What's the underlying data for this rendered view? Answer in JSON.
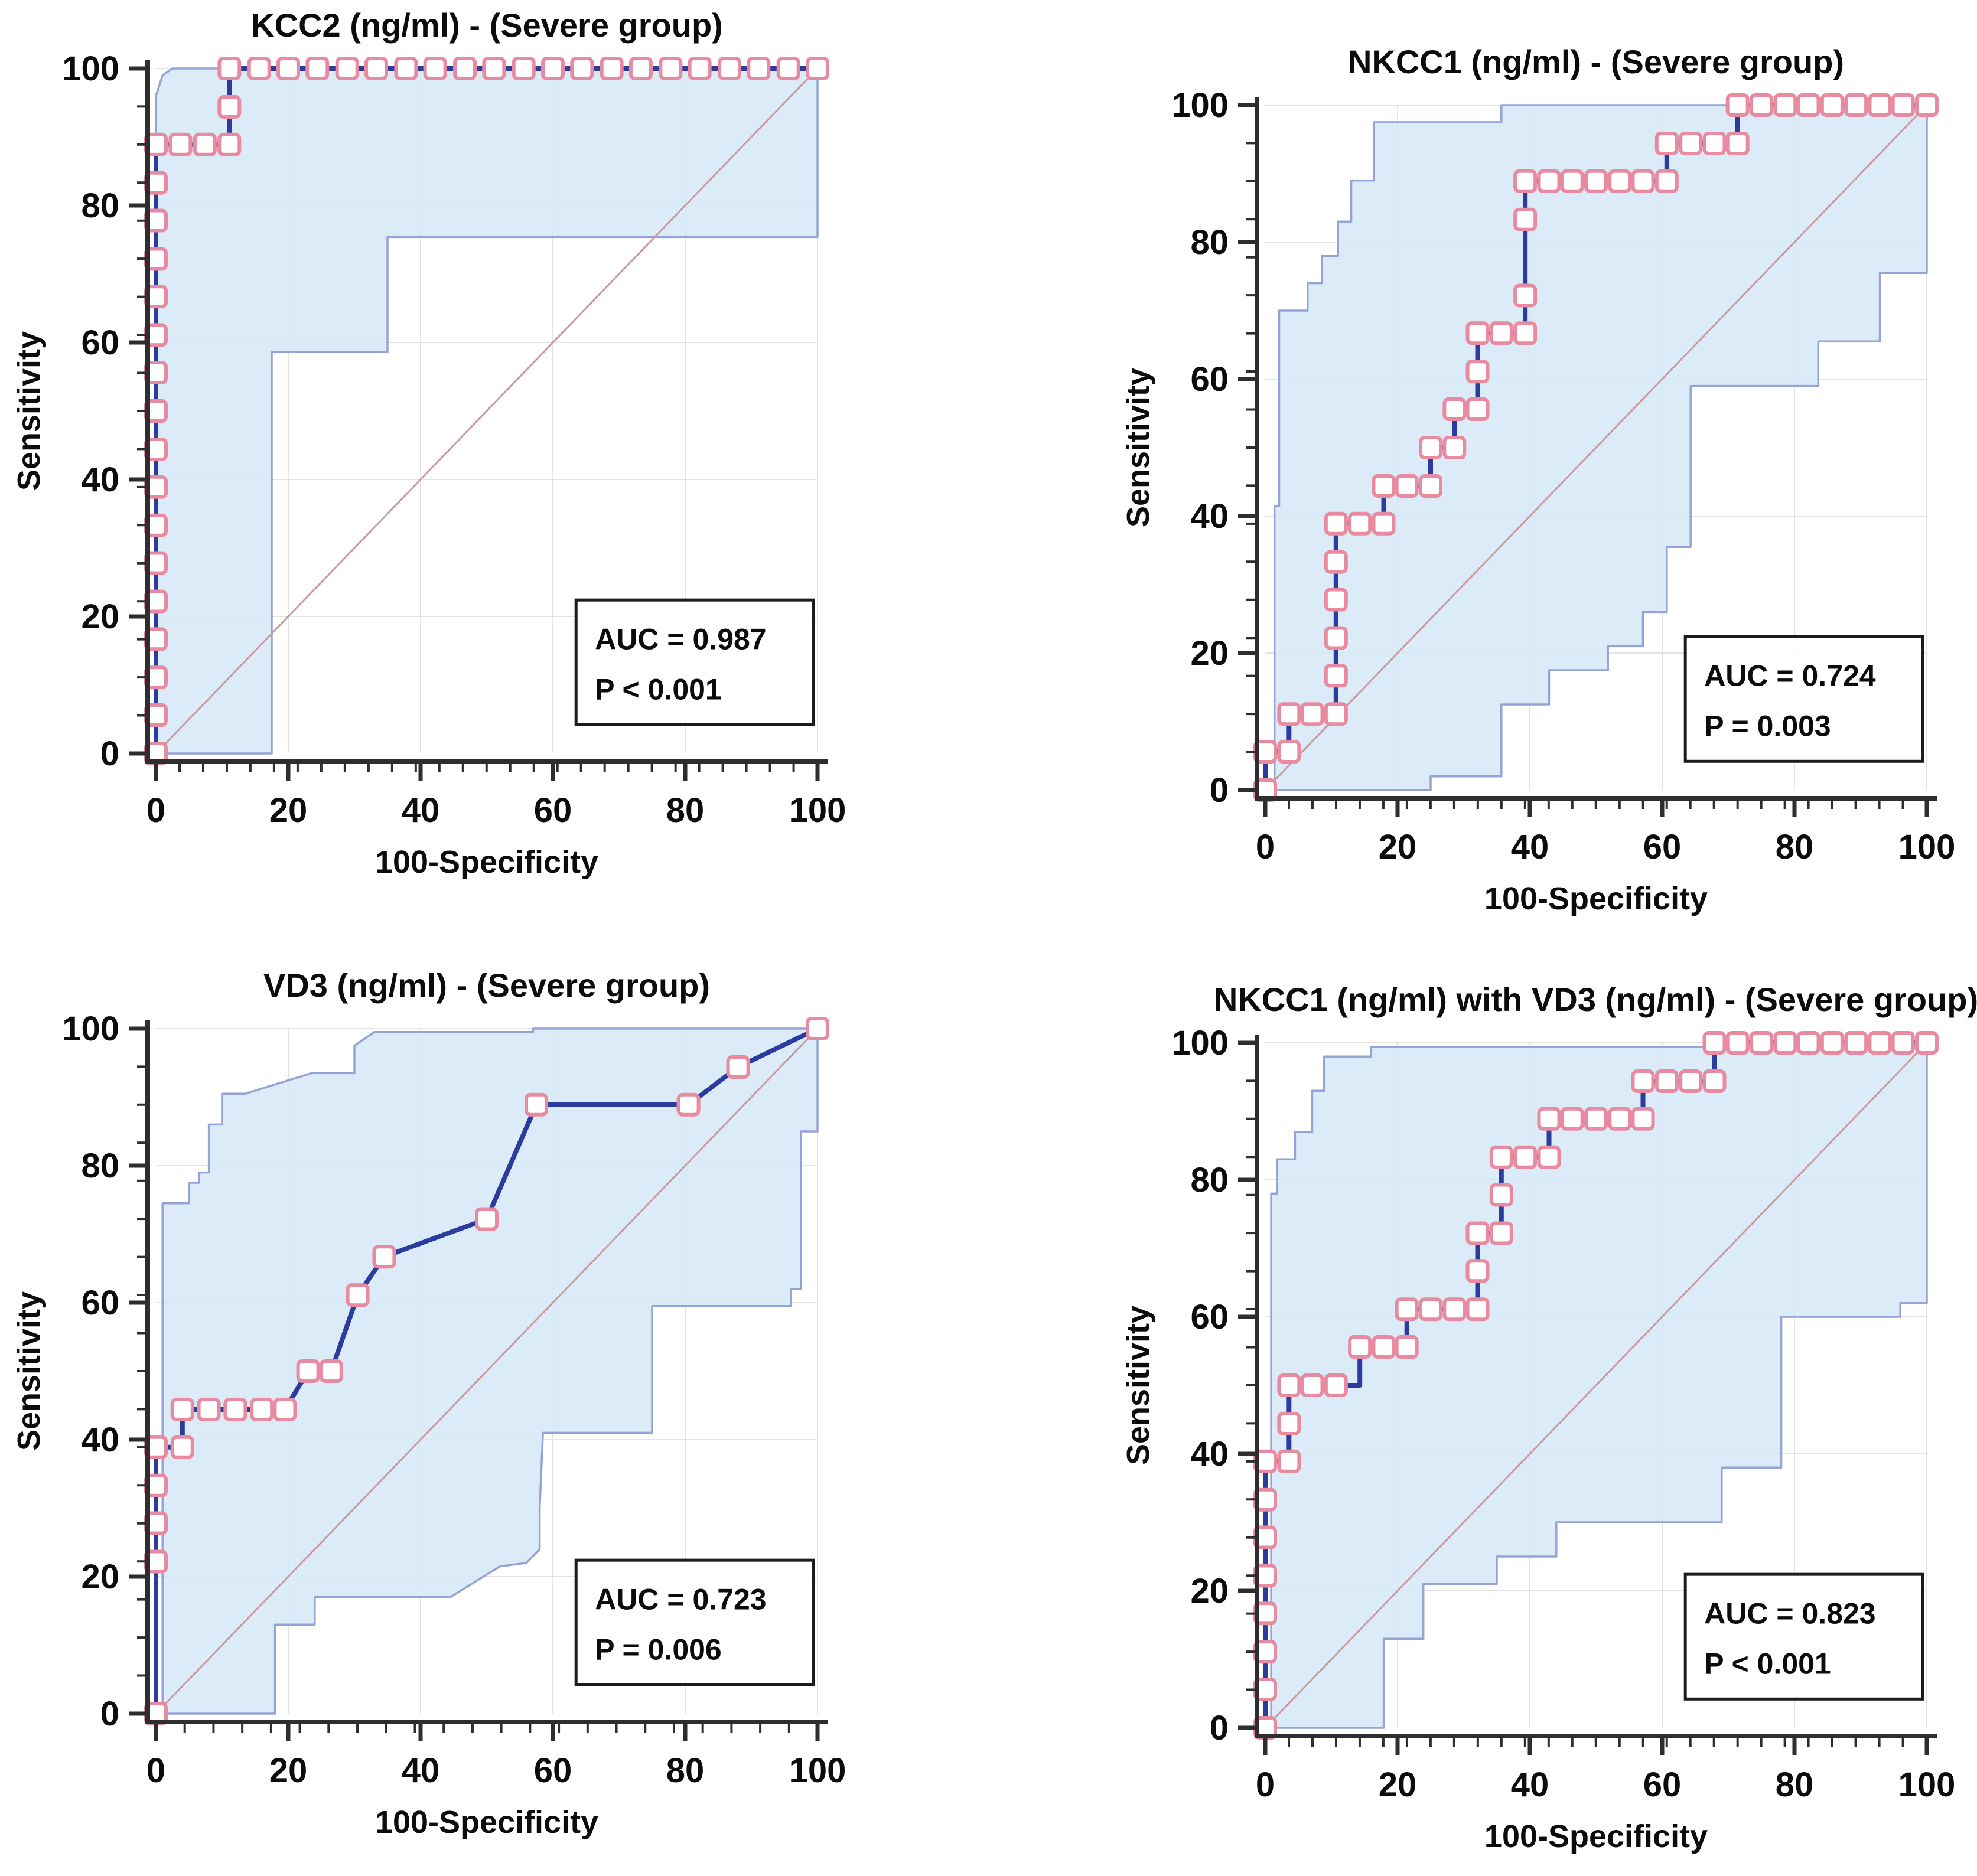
{
  "figure": {
    "background": "#ffffff",
    "xlabel": "100-Specificity",
    "ylabel": "Sensitivity"
  },
  "style": {
    "roc_line": "#2c3b9e",
    "marker_stroke": "#e88ba0",
    "marker_fill": "#ffffff",
    "ci_fill": "#d6e8f7",
    "ci_line": "#96a3d6",
    "diagonal": "#c99aa0",
    "grid": "#e3e3e3",
    "axis": "#2e2e2e",
    "text": "#0c0c0c",
    "box_border": "#1c1c1c",
    "box_fill": "#ffffff"
  },
  "chart_data": [
    {
      "type": "line",
      "id": "kcc2",
      "title": "KCC2 (ng/ml) - (Severe group)",
      "xlabel": "100-Specificity",
      "ylabel": "Sensitivity",
      "auc_label": "AUC = 0.987",
      "p_label": "P < 0.001",
      "xlim": [
        0,
        100
      ],
      "ylim": [
        0,
        100
      ],
      "x_ticks": [
        0,
        20,
        40,
        60,
        80,
        100
      ],
      "y_ticks": [
        0,
        20,
        40,
        60,
        80,
        100
      ],
      "x_minor_step": 3.57,
      "y_minor_step": 5.556,
      "roc": [
        [
          0,
          0
        ],
        [
          0,
          5.6
        ],
        [
          0,
          11.1
        ],
        [
          0,
          16.7
        ],
        [
          0,
          22.2
        ],
        [
          0,
          27.8
        ],
        [
          0,
          33.3
        ],
        [
          0,
          38.9
        ],
        [
          0,
          44.4
        ],
        [
          0,
          50
        ],
        [
          0,
          55.6
        ],
        [
          0,
          61.1
        ],
        [
          0,
          66.7
        ],
        [
          0,
          72.2
        ],
        [
          0,
          77.8
        ],
        [
          0,
          83.3
        ],
        [
          0,
          88.9
        ],
        [
          3.7,
          88.9
        ],
        [
          7.4,
          88.9
        ],
        [
          11.1,
          88.9
        ],
        [
          11.1,
          94.4
        ],
        [
          11.1,
          100
        ],
        [
          15.6,
          100
        ],
        [
          20,
          100
        ],
        [
          24.4,
          100
        ],
        [
          28.9,
          100
        ],
        [
          33.3,
          100
        ],
        [
          37.8,
          100
        ],
        [
          42.2,
          100
        ],
        [
          46.7,
          100
        ],
        [
          51.1,
          100
        ],
        [
          55.6,
          100
        ],
        [
          60,
          100
        ],
        [
          64.4,
          100
        ],
        [
          68.9,
          100
        ],
        [
          73.3,
          100
        ],
        [
          77.8,
          100
        ],
        [
          82.2,
          100
        ],
        [
          86.7,
          100
        ],
        [
          91.1,
          100
        ],
        [
          95.6,
          100
        ],
        [
          100,
          100
        ]
      ],
      "ci_upper": [
        [
          0,
          0
        ],
        [
          0,
          96
        ],
        [
          1,
          99
        ],
        [
          2.5,
          100
        ],
        [
          100,
          100
        ]
      ],
      "ci_lower": [
        [
          0,
          0
        ],
        [
          17.5,
          0
        ],
        [
          17.5,
          58.6
        ],
        [
          35,
          58.6
        ],
        [
          35,
          75.4
        ],
        [
          100,
          75.4
        ]
      ]
    },
    {
      "type": "line",
      "id": "nkcc1",
      "title": "NKCC1 (ng/ml) - (Severe group)",
      "xlabel": "100-Specificity",
      "ylabel": "Sensitivity",
      "auc_label": "AUC = 0.724",
      "p_label": "P = 0.003",
      "xlim": [
        0,
        100
      ],
      "ylim": [
        0,
        100
      ],
      "x_ticks": [
        0,
        20,
        40,
        60,
        80,
        100
      ],
      "y_ticks": [
        0,
        20,
        40,
        60,
        80,
        100
      ],
      "x_minor_step": 3.57,
      "y_minor_step": 5.556,
      "roc": [
        [
          0,
          0
        ],
        [
          0,
          5.6
        ],
        [
          3.6,
          5.6
        ],
        [
          3.6,
          11.1
        ],
        [
          7.1,
          11.1
        ],
        [
          10.7,
          11.1
        ],
        [
          10.7,
          16.7
        ],
        [
          10.7,
          22.2
        ],
        [
          10.7,
          27.8
        ],
        [
          10.7,
          33.3
        ],
        [
          10.7,
          38.9
        ],
        [
          14.3,
          38.9
        ],
        [
          17.9,
          38.9
        ],
        [
          17.9,
          44.4
        ],
        [
          21.4,
          44.4
        ],
        [
          25,
          44.4
        ],
        [
          25,
          50
        ],
        [
          28.6,
          50
        ],
        [
          28.6,
          55.6
        ],
        [
          32.1,
          55.6
        ],
        [
          32.1,
          61.1
        ],
        [
          32.1,
          66.7
        ],
        [
          35.7,
          66.7
        ],
        [
          39.3,
          66.7
        ],
        [
          39.3,
          72.2
        ],
        [
          39.3,
          77.8,
          0
        ],
        [
          39.3,
          83.3
        ],
        [
          39.3,
          88.9
        ],
        [
          42.9,
          88.9
        ],
        [
          46.4,
          88.9
        ],
        [
          50,
          88.9
        ],
        [
          53.6,
          88.9
        ],
        [
          57.1,
          88.9
        ],
        [
          60.7,
          88.9
        ],
        [
          60.7,
          94.4
        ],
        [
          64.3,
          94.4
        ],
        [
          67.9,
          94.4
        ],
        [
          71.4,
          94.4
        ],
        [
          71.4,
          100
        ],
        [
          75,
          100
        ],
        [
          78.6,
          100
        ],
        [
          82.1,
          100
        ],
        [
          85.7,
          100
        ],
        [
          89.3,
          100
        ],
        [
          92.9,
          100
        ],
        [
          96.4,
          100
        ],
        [
          100,
          100
        ]
      ],
      "ci_upper": [
        [
          0,
          0
        ],
        [
          1.4,
          0
        ],
        [
          1.4,
          41.5
        ],
        [
          2.1,
          41.5
        ],
        [
          2.1,
          70
        ],
        [
          6.4,
          70
        ],
        [
          6.4,
          74
        ],
        [
          8.6,
          74
        ],
        [
          8.6,
          78
        ],
        [
          11,
          78
        ],
        [
          11,
          83
        ],
        [
          13,
          83
        ],
        [
          13,
          89
        ],
        [
          16.4,
          89
        ],
        [
          16.4,
          97.5
        ],
        [
          35.7,
          97.5
        ],
        [
          35.7,
          100
        ],
        [
          100,
          100
        ]
      ],
      "ci_lower": [
        [
          0,
          0
        ],
        [
          25,
          0
        ],
        [
          25,
          2
        ],
        [
          35.7,
          2
        ],
        [
          35.7,
          12.5
        ],
        [
          42.9,
          12.5
        ],
        [
          42.9,
          17.5
        ],
        [
          51.8,
          17.5
        ],
        [
          51.8,
          21
        ],
        [
          57.1,
          21
        ],
        [
          57.1,
          26
        ],
        [
          60.7,
          26
        ],
        [
          60.7,
          35.5
        ],
        [
          64.3,
          35.5
        ],
        [
          64.3,
          59
        ],
        [
          83.6,
          59
        ],
        [
          83.6,
          65.5
        ],
        [
          92.9,
          65.5
        ],
        [
          92.9,
          75.5
        ],
        [
          100,
          75.5
        ]
      ]
    },
    {
      "type": "line",
      "id": "vd3",
      "title": "VD3 (ng/ml) - (Severe group)",
      "xlabel": "100-Specificity",
      "ylabel": "Sensitivity",
      "auc_label": "AUC = 0.723",
      "p_label": "P = 0.006",
      "xlim": [
        0,
        100
      ],
      "ylim": [
        0,
        100
      ],
      "x_ticks": [
        0,
        20,
        40,
        60,
        80,
        100
      ],
      "y_ticks": [
        0,
        20,
        40,
        60,
        80,
        100
      ],
      "x_minor_step": 4.35,
      "y_minor_step": 5.556,
      "roc": [
        [
          0,
          0
        ],
        [
          0,
          22.2
        ],
        [
          0,
          27.8
        ],
        [
          0,
          33.3
        ],
        [
          0,
          38.9
        ],
        [
          4,
          38.9
        ],
        [
          4,
          44.4
        ],
        [
          8,
          44.4
        ],
        [
          12,
          44.4
        ],
        [
          16,
          44.4
        ],
        [
          19.5,
          44.4
        ],
        [
          23,
          50
        ],
        [
          26.5,
          50
        ],
        [
          30.5,
          61.1
        ],
        [
          34.5,
          66.7
        ],
        [
          50,
          72.2
        ],
        [
          57.5,
          88.9
        ],
        [
          80.5,
          88.9
        ],
        [
          88,
          94.4
        ],
        [
          100,
          100
        ]
      ],
      "ci_upper": [
        [
          0,
          0
        ],
        [
          1,
          0
        ],
        [
          1,
          74.5
        ],
        [
          5,
          74.5
        ],
        [
          5,
          77.5
        ],
        [
          6.5,
          77.5
        ],
        [
          6.5,
          79
        ],
        [
          8,
          79
        ],
        [
          8,
          86
        ],
        [
          10,
          86
        ],
        [
          10,
          90.5
        ],
        [
          13.5,
          90.5
        ],
        [
          23.5,
          93.5
        ],
        [
          30,
          93.5
        ],
        [
          30,
          97.5
        ],
        [
          33,
          99.5
        ],
        [
          57,
          99.5
        ],
        [
          57,
          100
        ],
        [
          100,
          100
        ]
      ],
      "ci_lower": [
        [
          0,
          0
        ],
        [
          18,
          0
        ],
        [
          18,
          13
        ],
        [
          24,
          13
        ],
        [
          24,
          17
        ],
        [
          44.5,
          17
        ],
        [
          52,
          21.5
        ],
        [
          56,
          22
        ],
        [
          58,
          24
        ],
        [
          58,
          30
        ],
        [
          58.5,
          41
        ],
        [
          75,
          41
        ],
        [
          75,
          59.5
        ],
        [
          96,
          59.5
        ],
        [
          96,
          62
        ],
        [
          97.5,
          62
        ],
        [
          97.5,
          85
        ],
        [
          100,
          85
        ],
        [
          100,
          100
        ]
      ]
    },
    {
      "type": "line",
      "id": "combo",
      "title": "NKCC1 (ng/ml) with VD3 (ng/ml) - (Severe group)",
      "xlabel": "100-Specificity",
      "ylabel": "Sensitivity",
      "auc_label": "AUC = 0.823",
      "p_label": "P < 0.001",
      "xlim": [
        0,
        100
      ],
      "ylim": [
        0,
        100
      ],
      "x_ticks": [
        0,
        20,
        40,
        60,
        80,
        100
      ],
      "y_ticks": [
        0,
        20,
        40,
        60,
        80,
        100
      ],
      "x_minor_step": 3.57,
      "y_minor_step": 5.556,
      "roc": [
        [
          0,
          0
        ],
        [
          0,
          5.6
        ],
        [
          0,
          11.1
        ],
        [
          0,
          16.7
        ],
        [
          0,
          22.2
        ],
        [
          0,
          27.8
        ],
        [
          0,
          33.3
        ],
        [
          0,
          38.9
        ],
        [
          3.6,
          38.9
        ],
        [
          3.6,
          44.4
        ],
        [
          3.6,
          50
        ],
        [
          7.1,
          50
        ],
        [
          10.7,
          50
        ],
        [
          14.3,
          50,
          0
        ],
        [
          14.3,
          55.6
        ],
        [
          17.9,
          55.6
        ],
        [
          21.4,
          55.6
        ],
        [
          21.4,
          61.1
        ],
        [
          25,
          61.1
        ],
        [
          28.6,
          61.1
        ],
        [
          32.1,
          61.1
        ],
        [
          32.1,
          66.7
        ],
        [
          32.1,
          72.2
        ],
        [
          35.7,
          72.2
        ],
        [
          35.7,
          77.8
        ],
        [
          35.7,
          83.3
        ],
        [
          39.3,
          83.3
        ],
        [
          42.9,
          83.3
        ],
        [
          42.9,
          88.9
        ],
        [
          46.4,
          88.9
        ],
        [
          50,
          88.9
        ],
        [
          53.6,
          88.9
        ],
        [
          57.1,
          88.9
        ],
        [
          57.1,
          94.4
        ],
        [
          60.7,
          94.4
        ],
        [
          64.3,
          94.4
        ],
        [
          67.9,
          94.4
        ],
        [
          67.9,
          100
        ],
        [
          71.4,
          100
        ],
        [
          75,
          100
        ],
        [
          78.6,
          100
        ],
        [
          82.1,
          100
        ],
        [
          85.7,
          100
        ],
        [
          89.3,
          100
        ],
        [
          92.9,
          100
        ],
        [
          96.4,
          100
        ],
        [
          100,
          100
        ]
      ],
      "ci_upper": [
        [
          0,
          0
        ],
        [
          0.9,
          0
        ],
        [
          0.9,
          78
        ],
        [
          1.8,
          78
        ],
        [
          1.8,
          83
        ],
        [
          4.5,
          83
        ],
        [
          4.5,
          87
        ],
        [
          7.1,
          87
        ],
        [
          7.1,
          93
        ],
        [
          8.9,
          93
        ],
        [
          8.9,
          98
        ],
        [
          16,
          98
        ],
        [
          16,
          99.4
        ],
        [
          67.9,
          99.4
        ],
        [
          67.9,
          100
        ],
        [
          100,
          100
        ]
      ],
      "ci_lower": [
        [
          0,
          0
        ],
        [
          17.9,
          0
        ],
        [
          17.9,
          13
        ],
        [
          23.9,
          13
        ],
        [
          23.9,
          21
        ],
        [
          35,
          21
        ],
        [
          35,
          25
        ],
        [
          44,
          25
        ],
        [
          44,
          30
        ],
        [
          69,
          30
        ],
        [
          69,
          38
        ],
        [
          78,
          38
        ],
        [
          78,
          60
        ],
        [
          96,
          60
        ],
        [
          96,
          62
        ],
        [
          100,
          62
        ],
        [
          100,
          76
        ]
      ]
    }
  ]
}
